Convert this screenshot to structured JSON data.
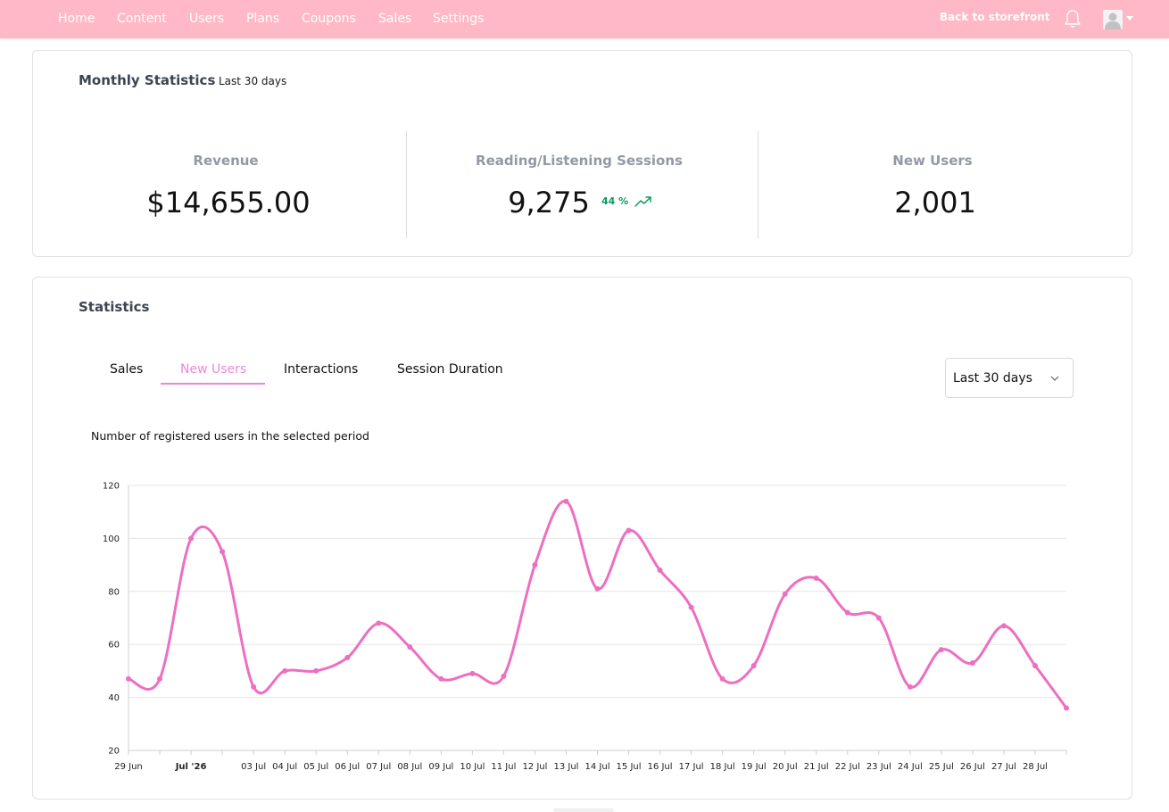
{
  "nav": {
    "items": [
      "Home",
      "Content",
      "Users",
      "Plans",
      "Coupons",
      "Sales",
      "Settings"
    ],
    "back_label": "Back to storefront",
    "bell_icon": "bell-icon",
    "avatar_icon": "user-avatar-icon",
    "bar_color": "#ffb8c6"
  },
  "monthly": {
    "title": "Monthly Statistics",
    "period": "Last 30 days",
    "stats": [
      {
        "label": "Revenue",
        "value": "$14,655.00"
      },
      {
        "label": "Reading/Listening Sessions",
        "value": "9,275",
        "trend": "44 %",
        "trend_icon": "trending-up-icon",
        "trend_color": "#0c9a5f"
      },
      {
        "label": "New Users",
        "value": "2,001"
      }
    ]
  },
  "statistics": {
    "title": "Statistics",
    "tabs": [
      "Sales",
      "New Users",
      "Interactions",
      "Session Duration"
    ],
    "active_tab": "New Users",
    "period_select": "Last 30 days",
    "caption": "Number of registered users in the selected period"
  },
  "chart_data": {
    "type": "line",
    "title": "",
    "xlabel": "",
    "ylabel": "",
    "ylim": [
      20,
      120
    ],
    "yticks": [
      20,
      40,
      60,
      80,
      100,
      120
    ],
    "grid": true,
    "line_color": "#ec6fc1",
    "x": [
      "29 Jun",
      "30 Jun",
      "Jul '26",
      "02 Jul",
      "03 Jul",
      "04 Jul",
      "05 Jul",
      "06 Jul",
      "07 Jul",
      "08 Jul",
      "09 Jul",
      "10 Jul",
      "11 Jul",
      "12 Jul",
      "13 Jul",
      "14 Jul",
      "15 Jul",
      "16 Jul",
      "17 Jul",
      "18 Jul",
      "19 Jul",
      "20 Jul",
      "21 Jul",
      "22 Jul",
      "23 Jul",
      "24 Jul",
      "25 Jul",
      "26 Jul",
      "27 Jul",
      "28 Jul",
      "29 Jul"
    ],
    "tick_labels": [
      "29 Jun",
      "",
      "Jul '26",
      "",
      "03 Jul",
      "04 Jul",
      "05 Jul",
      "06 Jul",
      "07 Jul",
      "08 Jul",
      "09 Jul",
      "10 Jul",
      "11 Jul",
      "12 Jul",
      "13 Jul",
      "14 Jul",
      "15 Jul",
      "16 Jul",
      "17 Jul",
      "18 Jul",
      "19 Jul",
      "20 Jul",
      "21 Jul",
      "22 Jul",
      "23 Jul",
      "24 Jul",
      "25 Jul",
      "26 Jul",
      "27 Jul",
      "28 Jul",
      ""
    ],
    "bold_ticks": [
      "Jul '26"
    ],
    "series": [
      {
        "values": [
          47,
          47,
          100,
          95,
          44,
          50,
          50,
          55,
          68,
          59,
          47,
          49,
          48,
          90,
          114,
          81,
          103,
          88,
          74,
          47,
          52,
          79,
          85,
          72,
          70,
          44,
          58,
          53,
          67,
          52,
          36
        ]
      }
    ]
  }
}
